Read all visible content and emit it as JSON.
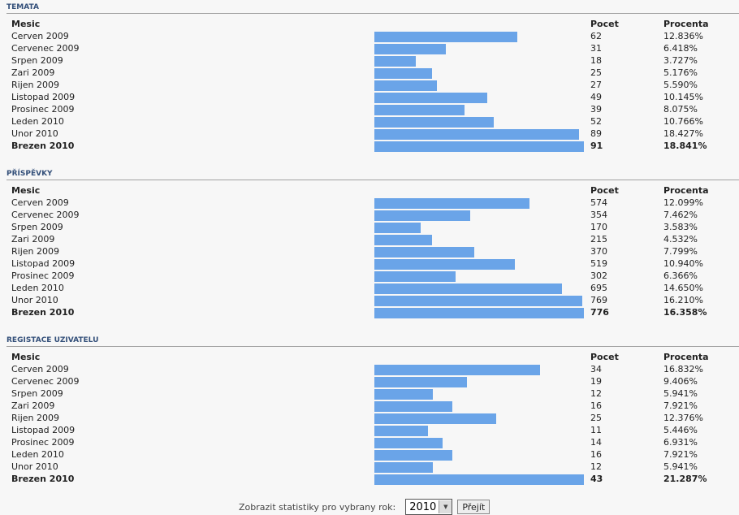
{
  "columns": {
    "month": "Mesic",
    "count": "Pocet",
    "percent": "Procenta"
  },
  "bar_color": "#6aa4e8",
  "sections": [
    {
      "title": "TEMATA",
      "rows": [
        {
          "month": "Cerven 2009",
          "count": 62,
          "percent": "12.836%"
        },
        {
          "month": "Cervenec 2009",
          "count": 31,
          "percent": "6.418%"
        },
        {
          "month": "Srpen 2009",
          "count": 18,
          "percent": "3.727%"
        },
        {
          "month": "Zari 2009",
          "count": 25,
          "percent": "5.176%"
        },
        {
          "month": "Rijen 2009",
          "count": 27,
          "percent": "5.590%"
        },
        {
          "month": "Listopad 2009",
          "count": 49,
          "percent": "10.145%"
        },
        {
          "month": "Prosinec 2009",
          "count": 39,
          "percent": "8.075%"
        },
        {
          "month": "Leden 2010",
          "count": 52,
          "percent": "10.766%"
        },
        {
          "month": "Unor 2010",
          "count": 89,
          "percent": "18.427%"
        },
        {
          "month": "Brezen 2010",
          "count": 91,
          "percent": "18.841%",
          "highlight": true
        }
      ]
    },
    {
      "title": "PŘÍSPĚVKY",
      "rows": [
        {
          "month": "Cerven 2009",
          "count": 574,
          "percent": "12.099%"
        },
        {
          "month": "Cervenec 2009",
          "count": 354,
          "percent": "7.462%"
        },
        {
          "month": "Srpen 2009",
          "count": 170,
          "percent": "3.583%"
        },
        {
          "month": "Zari 2009",
          "count": 215,
          "percent": "4.532%"
        },
        {
          "month": "Rijen 2009",
          "count": 370,
          "percent": "7.799%"
        },
        {
          "month": "Listopad 2009",
          "count": 519,
          "percent": "10.940%"
        },
        {
          "month": "Prosinec 2009",
          "count": 302,
          "percent": "6.366%"
        },
        {
          "month": "Leden 2010",
          "count": 695,
          "percent": "14.650%"
        },
        {
          "month": "Unor 2010",
          "count": 769,
          "percent": "16.210%"
        },
        {
          "month": "Brezen 2010",
          "count": 776,
          "percent": "16.358%",
          "highlight": true
        }
      ]
    },
    {
      "title": "REGISTACE UZIVATELU",
      "rows": [
        {
          "month": "Cerven 2009",
          "count": 34,
          "percent": "16.832%"
        },
        {
          "month": "Cervenec 2009",
          "count": 19,
          "percent": "9.406%"
        },
        {
          "month": "Srpen 2009",
          "count": 12,
          "percent": "5.941%"
        },
        {
          "month": "Zari 2009",
          "count": 16,
          "percent": "7.921%"
        },
        {
          "month": "Rijen 2009",
          "count": 25,
          "percent": "12.376%"
        },
        {
          "month": "Listopad 2009",
          "count": 11,
          "percent": "5.446%"
        },
        {
          "month": "Prosinec 2009",
          "count": 14,
          "percent": "6.931%"
        },
        {
          "month": "Leden 2010",
          "count": 16,
          "percent": "7.921%"
        },
        {
          "month": "Unor 2010",
          "count": 12,
          "percent": "5.941%"
        },
        {
          "month": "Brezen 2010",
          "count": 43,
          "percent": "21.287%",
          "highlight": true
        }
      ]
    }
  ],
  "footer": {
    "label": "Zobrazit statistiky pro vybrany rok:",
    "year": "2010",
    "button": "Přejít"
  }
}
